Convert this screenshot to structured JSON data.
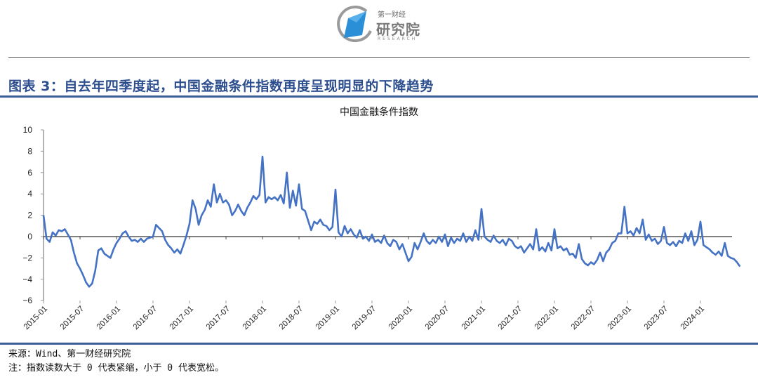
{
  "header": {
    "logo": {
      "brand_top": "第一财经",
      "brand_main": "研究院",
      "brand_sub": "RESEARCH",
      "colors": {
        "blue": "#2a8fd6",
        "gray": "#8a8a8a"
      }
    }
  },
  "figure": {
    "title": "图表 3：自去年四季度起，中国金融条件指数再度呈现明显的下降趋势",
    "title_color": "#2e4f8f",
    "rule_color": "#3c5d96"
  },
  "footer": {
    "source": "来源：Wind、第一财经研究院",
    "note": "注：指数读数大于 0 代表紧缩，小于 0 代表宽松。"
  },
  "chart_data": {
    "type": "line",
    "title": "中国金融条件指数",
    "xlabel": "",
    "ylabel": "",
    "ylim": [
      -6,
      10
    ],
    "yticks": [
      10,
      8,
      6,
      4,
      2,
      0,
      -2,
      -4,
      -6
    ],
    "xticks": [
      "2015-01",
      "2015-07",
      "2016-01",
      "2016-07",
      "2017-01",
      "2017-07",
      "2018-01",
      "2018-07",
      "2019-01",
      "2019-07",
      "2020-01",
      "2020-07",
      "2021-01",
      "2021-07",
      "2022-01",
      "2022-07",
      "2023-01",
      "2023-07",
      "2024-01"
    ],
    "grid": false,
    "legend": "none",
    "line_color": "#4472c4",
    "zero_line": true,
    "series": [
      {
        "name": "中国金融条件指数",
        "points": [
          [
            "2015-01",
            2.0
          ],
          [
            "2015-01",
            -0.2
          ],
          [
            "2015-02",
            -0.5
          ],
          [
            "2015-02",
            0.4
          ],
          [
            "2015-03",
            0.1
          ],
          [
            "2015-03",
            0.6
          ],
          [
            "2015-04",
            0.5
          ],
          [
            "2015-04",
            0.7
          ],
          [
            "2015-05",
            0.2
          ],
          [
            "2015-05",
            -0.3
          ],
          [
            "2015-06",
            -1.5
          ],
          [
            "2015-06",
            -2.5
          ],
          [
            "2015-07",
            -3.0
          ],
          [
            "2015-07",
            -3.6
          ],
          [
            "2015-08",
            -4.3
          ],
          [
            "2015-08",
            -4.7
          ],
          [
            "2015-09",
            -4.4
          ],
          [
            "2015-09",
            -3.2
          ],
          [
            "2015-10",
            -1.3
          ],
          [
            "2015-10",
            -1.1
          ],
          [
            "2015-11",
            -1.6
          ],
          [
            "2015-11",
            -1.8
          ],
          [
            "2015-12",
            -2.0
          ],
          [
            "2015-12",
            -1.2
          ],
          [
            "2016-01",
            -0.6
          ],
          [
            "2016-01",
            -0.2
          ],
          [
            "2016-02",
            0.3
          ],
          [
            "2016-02",
            0.5
          ],
          [
            "2016-03",
            0.0
          ],
          [
            "2016-03",
            -0.4
          ],
          [
            "2016-04",
            -0.3
          ],
          [
            "2016-04",
            -0.5
          ],
          [
            "2016-05",
            -0.2
          ],
          [
            "2016-05",
            -0.5
          ],
          [
            "2016-06",
            -0.2
          ],
          [
            "2016-06",
            -0.1
          ],
          [
            "2016-07",
            0.0
          ],
          [
            "2016-07",
            1.1
          ],
          [
            "2016-08",
            0.8
          ],
          [
            "2016-08",
            0.5
          ],
          [
            "2016-09",
            -0.3
          ],
          [
            "2016-09",
            -0.8
          ],
          [
            "2016-10",
            -1.1
          ],
          [
            "2016-10",
            -1.5
          ],
          [
            "2016-11",
            -1.2
          ],
          [
            "2016-11",
            -1.6
          ],
          [
            "2016-12",
            -0.8
          ],
          [
            "2016-12",
            0.1
          ],
          [
            "2017-01",
            1.2
          ],
          [
            "2017-01",
            3.4
          ],
          [
            "2017-02",
            2.6
          ],
          [
            "2017-02",
            1.1
          ],
          [
            "2017-03",
            2.0
          ],
          [
            "2017-03",
            2.5
          ],
          [
            "2017-04",
            3.4
          ],
          [
            "2017-04",
            2.8
          ],
          [
            "2017-05",
            4.9
          ],
          [
            "2017-05",
            3.2
          ],
          [
            "2017-06",
            4.0
          ],
          [
            "2017-06",
            3.2
          ],
          [
            "2017-07",
            3.4
          ],
          [
            "2017-07",
            3.0
          ],
          [
            "2017-08",
            2.0
          ],
          [
            "2017-08",
            2.4
          ],
          [
            "2017-09",
            3.0
          ],
          [
            "2017-09",
            2.4
          ],
          [
            "2017-10",
            2.0
          ],
          [
            "2017-10",
            2.7
          ],
          [
            "2017-11",
            3.2
          ],
          [
            "2017-11",
            3.8
          ],
          [
            "2017-12",
            3.5
          ],
          [
            "2017-12",
            3.9
          ],
          [
            "2018-01",
            7.5
          ],
          [
            "2018-01",
            3.2
          ],
          [
            "2018-02",
            3.7
          ],
          [
            "2018-02",
            3.5
          ],
          [
            "2018-03",
            3.7
          ],
          [
            "2018-03",
            3.4
          ],
          [
            "2018-04",
            3.9
          ],
          [
            "2018-04",
            3.1
          ],
          [
            "2018-05",
            6.0
          ],
          [
            "2018-05",
            2.7
          ],
          [
            "2018-06",
            4.3
          ],
          [
            "2018-06",
            2.9
          ],
          [
            "2018-07",
            4.9
          ],
          [
            "2018-07",
            2.6
          ],
          [
            "2018-08",
            2.4
          ],
          [
            "2018-08",
            1.5
          ],
          [
            "2018-09",
            0.6
          ],
          [
            "2018-09",
            1.4
          ],
          [
            "2018-10",
            1.2
          ],
          [
            "2018-10",
            1.6
          ],
          [
            "2018-11",
            1.1
          ],
          [
            "2018-11",
            1.0
          ],
          [
            "2018-12",
            0.6
          ],
          [
            "2018-12",
            0.9
          ],
          [
            "2019-01",
            4.4
          ],
          [
            "2019-01",
            0.4
          ],
          [
            "2019-02",
            0.0
          ],
          [
            "2019-02",
            1.0
          ],
          [
            "2019-03",
            0.3
          ],
          [
            "2019-03",
            0.7
          ],
          [
            "2019-04",
            0.2
          ],
          [
            "2019-04",
            -0.1
          ],
          [
            "2019-05",
            0.6
          ],
          [
            "2019-05",
            -0.2
          ],
          [
            "2019-06",
            0.0
          ],
          [
            "2019-06",
            -0.4
          ],
          [
            "2019-07",
            0.2
          ],
          [
            "2019-07",
            -0.5
          ],
          [
            "2019-08",
            -0.3
          ],
          [
            "2019-08",
            -0.6
          ],
          [
            "2019-09",
            0.1
          ],
          [
            "2019-09",
            -0.6
          ],
          [
            "2019-10",
            -0.9
          ],
          [
            "2019-10",
            -0.3
          ],
          [
            "2019-11",
            -0.5
          ],
          [
            "2019-11",
            -1.2
          ],
          [
            "2019-12",
            -0.7
          ],
          [
            "2019-12",
            -1.5
          ],
          [
            "2020-01",
            -2.3
          ],
          [
            "2020-01",
            -1.9
          ],
          [
            "2020-02",
            -0.6
          ],
          [
            "2020-02",
            -1.2
          ],
          [
            "2020-03",
            -0.5
          ],
          [
            "2020-03",
            0.3
          ],
          [
            "2020-04",
            -0.4
          ],
          [
            "2020-04",
            -0.7
          ],
          [
            "2020-05",
            -0.3
          ],
          [
            "2020-05",
            -0.6
          ],
          [
            "2020-06",
            0.0
          ],
          [
            "2020-06",
            -0.5
          ],
          [
            "2020-07",
            0.2
          ],
          [
            "2020-07",
            -0.9
          ],
          [
            "2020-08",
            -0.1
          ],
          [
            "2020-08",
            -0.6
          ],
          [
            "2020-09",
            -0.2
          ],
          [
            "2020-09",
            -0.4
          ],
          [
            "2020-10",
            0.3
          ],
          [
            "2020-10",
            -0.5
          ],
          [
            "2020-11",
            0.0
          ],
          [
            "2020-11",
            -0.4
          ],
          [
            "2020-12",
            0.6
          ],
          [
            "2020-12",
            -0.3
          ],
          [
            "2021-01",
            2.6
          ],
          [
            "2021-01",
            0.0
          ],
          [
            "2021-02",
            -0.3
          ],
          [
            "2021-02",
            -0.5
          ],
          [
            "2021-03",
            0.1
          ],
          [
            "2021-03",
            -0.4
          ],
          [
            "2021-04",
            -0.6
          ],
          [
            "2021-04",
            -0.3
          ],
          [
            "2021-05",
            -0.8
          ],
          [
            "2021-05",
            -0.2
          ],
          [
            "2021-06",
            -0.4
          ],
          [
            "2021-06",
            -0.9
          ],
          [
            "2021-07",
            -1.1
          ],
          [
            "2021-07",
            -0.9
          ],
          [
            "2021-08",
            -1.5
          ],
          [
            "2021-08",
            -1.1
          ],
          [
            "2021-09",
            -0.7
          ],
          [
            "2021-09",
            -1.2
          ],
          [
            "2021-10",
            0.7
          ],
          [
            "2021-10",
            -1.3
          ],
          [
            "2021-11",
            -1.0
          ],
          [
            "2021-11",
            -1.4
          ],
          [
            "2021-12",
            -0.6
          ],
          [
            "2021-12",
            -1.3
          ],
          [
            "2022-01",
            0.7
          ],
          [
            "2022-01",
            -1.1
          ],
          [
            "2022-02",
            -0.9
          ],
          [
            "2022-02",
            -1.3
          ],
          [
            "2022-03",
            -1.1
          ],
          [
            "2022-03",
            -1.7
          ],
          [
            "2022-04",
            -1.6
          ],
          [
            "2022-04",
            -2.0
          ],
          [
            "2022-05",
            -0.7
          ],
          [
            "2022-05",
            -2.1
          ],
          [
            "2022-06",
            -2.5
          ],
          [
            "2022-06",
            -2.7
          ],
          [
            "2022-07",
            -2.4
          ],
          [
            "2022-07",
            -2.6
          ],
          [
            "2022-08",
            -2.2
          ],
          [
            "2022-08",
            -1.5
          ],
          [
            "2022-09",
            -2.3
          ],
          [
            "2022-09",
            -1.5
          ],
          [
            "2022-10",
            -1.2
          ],
          [
            "2022-10",
            -0.6
          ],
          [
            "2022-11",
            -0.4
          ],
          [
            "2022-11",
            0.3
          ],
          [
            "2022-12",
            0.3
          ],
          [
            "2022-12",
            2.8
          ],
          [
            "2023-01",
            0.3
          ],
          [
            "2023-01",
            0.5
          ],
          [
            "2023-02",
            0.1
          ],
          [
            "2023-02",
            0.8
          ],
          [
            "2023-03",
            0.3
          ],
          [
            "2023-03",
            1.6
          ],
          [
            "2023-04",
            -0.3
          ],
          [
            "2023-04",
            0.2
          ],
          [
            "2023-05",
            -0.4
          ],
          [
            "2023-05",
            -0.2
          ],
          [
            "2023-06",
            -0.7
          ],
          [
            "2023-06",
            -0.4
          ],
          [
            "2023-07",
            0.9
          ],
          [
            "2023-07",
            -0.6
          ],
          [
            "2023-08",
            -0.8
          ],
          [
            "2023-08",
            -0.5
          ],
          [
            "2023-09",
            -0.9
          ],
          [
            "2023-09",
            -0.4
          ],
          [
            "2023-10",
            -0.6
          ],
          [
            "2023-10",
            0.3
          ],
          [
            "2023-11",
            -0.4
          ],
          [
            "2023-11",
            0.5
          ],
          [
            "2023-12",
            -0.8
          ],
          [
            "2023-12",
            -0.3
          ],
          [
            "2024-01",
            1.4
          ],
          [
            "2024-01",
            -0.8
          ],
          [
            "2024-02",
            -1.0
          ],
          [
            "2024-02",
            -1.2
          ],
          [
            "2024-03",
            -1.5
          ],
          [
            "2024-03",
            -1.7
          ],
          [
            "2024-04",
            -1.4
          ],
          [
            "2024-04",
            -1.8
          ],
          [
            "2024-05",
            -0.6
          ],
          [
            "2024-05",
            -1.8
          ],
          [
            "2024-06",
            -2.0
          ],
          [
            "2024-06",
            -2.1
          ],
          [
            "2024-07",
            -2.4
          ],
          [
            "2024-07",
            -2.8
          ]
        ]
      }
    ]
  }
}
